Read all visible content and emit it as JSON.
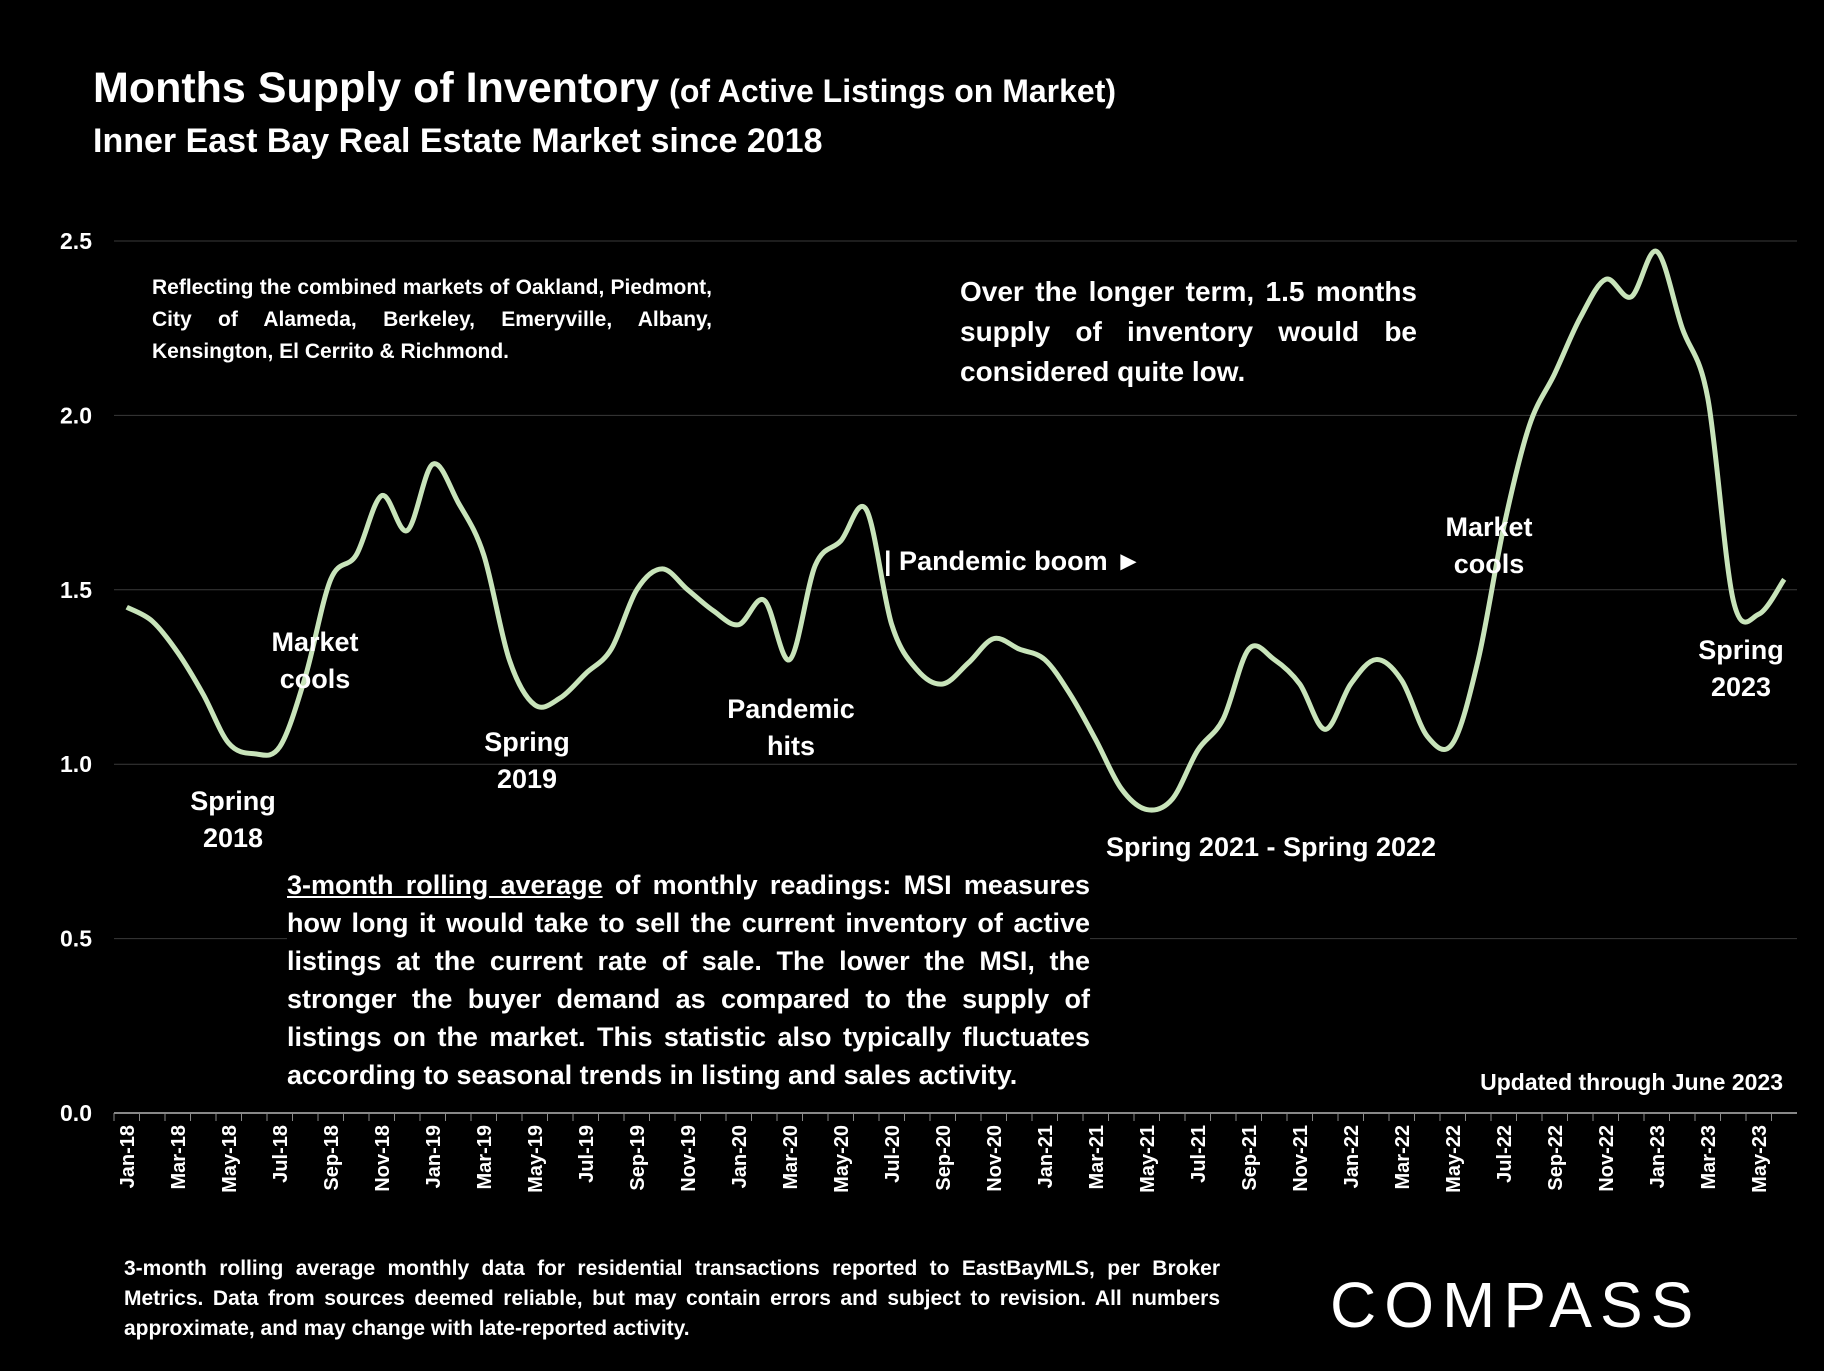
{
  "chart_data": {
    "type": "line",
    "title": "Months Supply of Inventory",
    "title_suffix": "(of Active Listings on Market)",
    "subtitle": "Inner East Bay Real Estate Market since 2018",
    "categories": [
      "Jan-18",
      null,
      "Mar-18",
      null,
      "May-18",
      null,
      "Jul-18",
      null,
      "Sep-18",
      null,
      "Nov-18",
      null,
      "Jan-19",
      null,
      "Mar-19",
      null,
      "May-19",
      null,
      "Jul-19",
      null,
      "Sep-19",
      null,
      "Nov-19",
      null,
      "Jan-20",
      null,
      "Mar-20",
      null,
      "May-20",
      null,
      "Jul-20",
      null,
      "Sep-20",
      null,
      "Nov-20",
      null,
      "Jan-21",
      null,
      "Mar-21",
      null,
      "May-21",
      null,
      "Jul-21",
      null,
      "Sep-21",
      null,
      "Nov-21",
      null,
      "Jan-22",
      null,
      "Mar-22",
      null,
      "May-22",
      null,
      "Jul-22",
      null,
      "Sep-22",
      null,
      "Nov-22",
      null,
      "Jan-23",
      null,
      "Mar-23",
      null,
      "May-23",
      null
    ],
    "series": [
      {
        "name": "Months Supply of Inventory",
        "color": "#c8e4ba",
        "values": [
          1.45,
          1.41,
          1.32,
          1.2,
          1.06,
          1.03,
          1.05,
          1.25,
          1.53,
          1.6,
          1.77,
          1.67,
          1.86,
          1.75,
          1.6,
          1.3,
          1.17,
          1.19,
          1.26,
          1.33,
          1.5,
          1.56,
          1.5,
          1.44,
          1.4,
          1.47,
          1.3,
          1.57,
          1.64,
          1.73,
          1.4,
          1.27,
          1.23,
          1.29,
          1.36,
          1.33,
          1.3,
          1.2,
          1.07,
          0.93,
          0.87,
          0.9,
          1.04,
          1.13,
          1.33,
          1.3,
          1.23,
          1.1,
          1.23,
          1.3,
          1.24,
          1.08,
          1.06,
          1.3,
          1.68,
          1.97,
          2.12,
          2.28,
          2.39,
          2.34,
          2.47,
          2.25,
          2.05,
          1.47,
          1.43,
          1.53
        ]
      }
    ],
    "ylim": [
      0,
      2.5
    ],
    "yticks": [
      {
        "value": 0,
        "label": "0.0"
      },
      0.5,
      {
        "value": 1,
        "label": "1.0"
      },
      1.5,
      {
        "value": 2,
        "label": "2.0"
      },
      2.5
    ],
    "grid": true,
    "annotations": {
      "coverage": "Reflecting the combined markets of Oakland, Piedmont, City of Alameda, Berkeley, Emeryville, Albany, Kensington, El Cerrito & Richmond.",
      "long_term": "Over the longer term, 1.5 months supply of inventory would be considered quite low.",
      "spring_2018": [
        "Spring",
        "2018"
      ],
      "market_cools_2018": [
        "Market",
        "cools"
      ],
      "spring_2019": [
        "Spring",
        "2019"
      ],
      "pandemic_hits": [
        "Pandemic",
        "hits"
      ],
      "pandemic_boom": "| Pandemic boom ►",
      "spring_2021_2022": "Spring 2021 - Spring 2022",
      "market_cools_2022": [
        "Market",
        "cools"
      ],
      "spring_2023": [
        "Spring",
        "2023"
      ],
      "description_underlined": "3-month rolling average",
      "description": " of monthly readings: MSI measures how long it would take to sell the current inventory of active listings at the current rate of sale. The lower the MSI, the stronger the buyer demand as compared to the supply of listings on the market. This statistic also typically fluctuates according to seasonal trends in listing and sales activity.",
      "updated": "Updated through June 2023"
    },
    "footnote": "3-month rolling average monthly data for residential transactions reported to EastBayMLS, per Broker Metrics. Data from sources deemed reliable, but may contain errors and subject to revision. All numbers approximate, and may change with late-reported activity.",
    "brand": "COMPASS"
  }
}
